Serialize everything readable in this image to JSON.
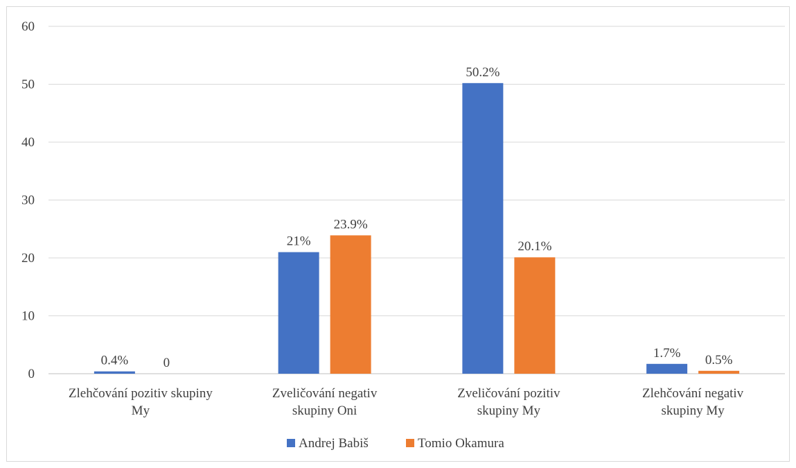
{
  "chart_data": {
    "type": "bar",
    "categories": [
      [
        "Zlehčování pozitiv skupiny",
        "My"
      ],
      [
        "Zveličování negativ",
        "skupiny Oni"
      ],
      [
        "Zveličování pozitiv",
        "skupiny My"
      ],
      [
        "Zlehčování negativ",
        "skupiny My"
      ]
    ],
    "series": [
      {
        "name": "Andrej Babiš",
        "color": "#4472c4",
        "values": [
          0.4,
          21,
          50.2,
          1.7
        ],
        "labels": [
          "0.4%",
          "21%",
          "50.2%",
          "1.7%"
        ]
      },
      {
        "name": "Tomio Okamura",
        "color": "#ed7d31",
        "values": [
          0,
          23.9,
          20.1,
          0.5
        ],
        "labels": [
          "0",
          "23.9%",
          "20.1%",
          "0.5%"
        ]
      }
    ],
    "ylim": [
      0,
      60
    ],
    "yticks": [
      "0",
      "10",
      "20",
      "30",
      "40",
      "50",
      "60"
    ],
    "grid": true,
    "legend": "bottom",
    "gridline_color": "#d9d9d9",
    "axis_color": "#bfbfbf"
  }
}
